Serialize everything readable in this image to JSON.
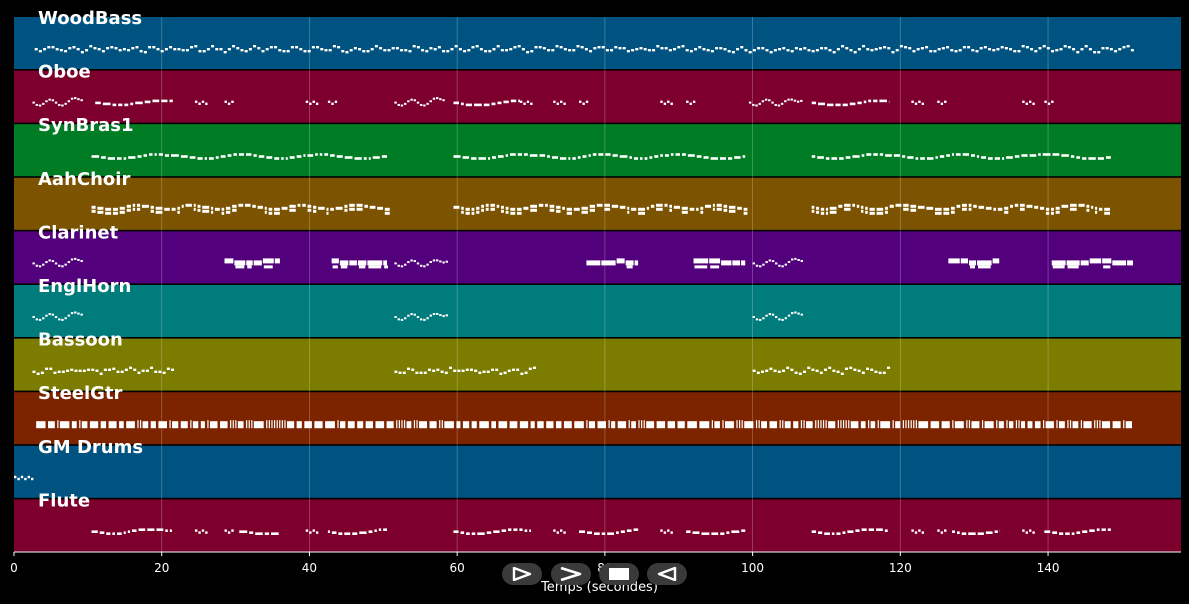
{
  "chart_data": {
    "type": "piano-roll",
    "xlabel": "Temps (secondes)",
    "xlim": [
      0,
      158
    ],
    "xticks": [
      0,
      20,
      40,
      60,
      80,
      100,
      120,
      140
    ],
    "grid": true,
    "tracks": [
      {
        "name": "WoodBass",
        "color": "#005380",
        "patterns": [
          {
            "start": 2.8,
            "end": 151.5,
            "style": "dense"
          }
        ]
      },
      {
        "name": "Oboe",
        "color": "#7d002c",
        "patterns": [
          {
            "start": 2.5,
            "end": 9,
            "style": "wavy"
          },
          {
            "start": 11,
            "end": 21.5,
            "style": "dashed"
          },
          {
            "start": 24.5,
            "end": 26,
            "style": "dots"
          },
          {
            "start": 28.5,
            "end": 29.5,
            "style": "dots"
          },
          {
            "start": 39.5,
            "end": 41,
            "style": "dots"
          },
          {
            "start": 42.5,
            "end": 43.5,
            "style": "dots"
          },
          {
            "start": 51.5,
            "end": 58,
            "style": "wavy"
          },
          {
            "start": 59.5,
            "end": 68.5,
            "style": "dashed"
          },
          {
            "start": 68.5,
            "end": 70,
            "style": "dots"
          },
          {
            "start": 73,
            "end": 74.5,
            "style": "dots"
          },
          {
            "start": 76.5,
            "end": 77.5,
            "style": "dots"
          },
          {
            "start": 87.5,
            "end": 89,
            "style": "dots"
          },
          {
            "start": 91,
            "end": 92,
            "style": "dots"
          },
          {
            "start": 99.5,
            "end": 106.5,
            "style": "wavy"
          },
          {
            "start": 108,
            "end": 118.5,
            "style": "dashed"
          },
          {
            "start": 121.5,
            "end": 123,
            "style": "dots"
          },
          {
            "start": 125,
            "end": 126,
            "style": "dots"
          },
          {
            "start": 136.5,
            "end": 138,
            "style": "dots"
          },
          {
            "start": 139.5,
            "end": 140.5,
            "style": "dots"
          }
        ]
      },
      {
        "name": "SynBras1",
        "color": "#007c24",
        "patterns": [
          {
            "start": 10.5,
            "end": 50.5,
            "style": "dashed"
          },
          {
            "start": 59.5,
            "end": 99,
            "style": "dashed"
          },
          {
            "start": 108,
            "end": 148.5,
            "style": "dashed"
          }
        ]
      },
      {
        "name": "AahChoir",
        "color": "#7c5300",
        "patterns": [
          {
            "start": 10.5,
            "end": 50.5,
            "style": "chord"
          },
          {
            "start": 59.5,
            "end": 99,
            "style": "chord"
          },
          {
            "start": 108,
            "end": 148.5,
            "style": "chord"
          }
        ]
      },
      {
        "name": "Clarinet",
        "color": "#53007c",
        "patterns": [
          {
            "start": 2.5,
            "end": 9,
            "style": "wavy"
          },
          {
            "start": 28.5,
            "end": 36,
            "style": "block"
          },
          {
            "start": 43,
            "end": 50.5,
            "style": "block"
          },
          {
            "start": 51.5,
            "end": 58.5,
            "style": "wavy"
          },
          {
            "start": 77.5,
            "end": 84.5,
            "style": "block"
          },
          {
            "start": 92,
            "end": 99,
            "style": "block"
          },
          {
            "start": 100,
            "end": 106.5,
            "style": "wavy"
          },
          {
            "start": 126.5,
            "end": 133.5,
            "style": "block"
          },
          {
            "start": 140.5,
            "end": 151.5,
            "style": "block"
          }
        ]
      },
      {
        "name": "EnglHorn",
        "color": "#007c7c",
        "patterns": [
          {
            "start": 2.5,
            "end": 9,
            "style": "wavy"
          },
          {
            "start": 51.5,
            "end": 58.5,
            "style": "wavy"
          },
          {
            "start": 100,
            "end": 106.5,
            "style": "wavy"
          }
        ]
      },
      {
        "name": "Bassoon",
        "color": "#7c7c00",
        "patterns": [
          {
            "start": 2.5,
            "end": 21.5,
            "style": "dense"
          },
          {
            "start": 51.5,
            "end": 70.5,
            "style": "dense"
          },
          {
            "start": 100,
            "end": 118.5,
            "style": "dense"
          }
        ]
      },
      {
        "name": "SteelGtr",
        "color": "#7c2400",
        "patterns": [
          {
            "start": 3,
            "end": 151.5,
            "style": "strum"
          }
        ]
      },
      {
        "name": "GM Drums",
        "color": "#005380",
        "patterns": [
          {
            "start": 0,
            "end": 2.5,
            "style": "dots"
          }
        ]
      },
      {
        "name": "Flute",
        "color": "#7d002c",
        "patterns": [
          {
            "start": 10.5,
            "end": 21.5,
            "style": "dashed"
          },
          {
            "start": 24.5,
            "end": 26,
            "style": "dots"
          },
          {
            "start": 28.5,
            "end": 29.5,
            "style": "dots"
          },
          {
            "start": 30.5,
            "end": 36,
            "style": "dashed"
          },
          {
            "start": 39.5,
            "end": 41,
            "style": "dots"
          },
          {
            "start": 42.5,
            "end": 50.5,
            "style": "dashed"
          },
          {
            "start": 59.5,
            "end": 70,
            "style": "dashed"
          },
          {
            "start": 73,
            "end": 74.5,
            "style": "dots"
          },
          {
            "start": 76.5,
            "end": 84.5,
            "style": "dashed"
          },
          {
            "start": 87.5,
            "end": 89,
            "style": "dots"
          },
          {
            "start": 91,
            "end": 99,
            "style": "dashed"
          },
          {
            "start": 108,
            "end": 118.5,
            "style": "dashed"
          },
          {
            "start": 121.5,
            "end": 123,
            "style": "dots"
          },
          {
            "start": 125,
            "end": 126,
            "style": "dots"
          },
          {
            "start": 127,
            "end": 133.5,
            "style": "dashed"
          },
          {
            "start": 136.5,
            "end": 138,
            "style": "dots"
          },
          {
            "start": 139.5,
            "end": 148.5,
            "style": "dashed"
          }
        ]
      }
    ]
  },
  "controls": [
    {
      "name": "play-button",
      "icon": "play-icon"
    },
    {
      "name": "fast-forward-button",
      "icon": "fast-forward-icon"
    },
    {
      "name": "stop-button",
      "icon": "stop-icon"
    },
    {
      "name": "rewind-button",
      "icon": "rewind-icon"
    }
  ]
}
